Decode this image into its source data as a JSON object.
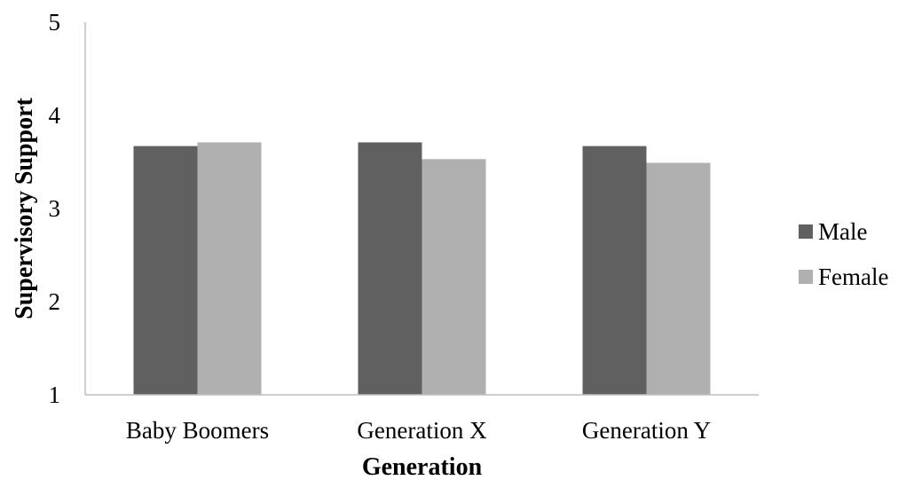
{
  "chart_data": {
    "type": "bar",
    "title": "",
    "xlabel": "Generation",
    "ylabel": "Supervisory Support",
    "categories": [
      "Baby Boomers",
      "Generation X",
      "Generation Y"
    ],
    "series": [
      {
        "name": "Male",
        "color": "#606060",
        "values": [
          3.67,
          3.71,
          3.67
        ]
      },
      {
        "name": "Female",
        "color": "#b0b0b0",
        "values": [
          3.71,
          3.53,
          3.49
        ]
      }
    ],
    "ylim": [
      1,
      5
    ],
    "yticks": [
      "1",
      "2",
      "3",
      "4",
      "5"
    ],
    "grid": false,
    "legend_position": "right"
  }
}
